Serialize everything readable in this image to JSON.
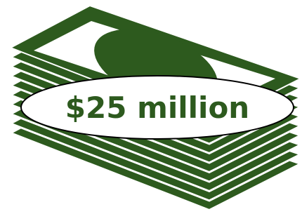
{
  "label": "$25 million"
}
